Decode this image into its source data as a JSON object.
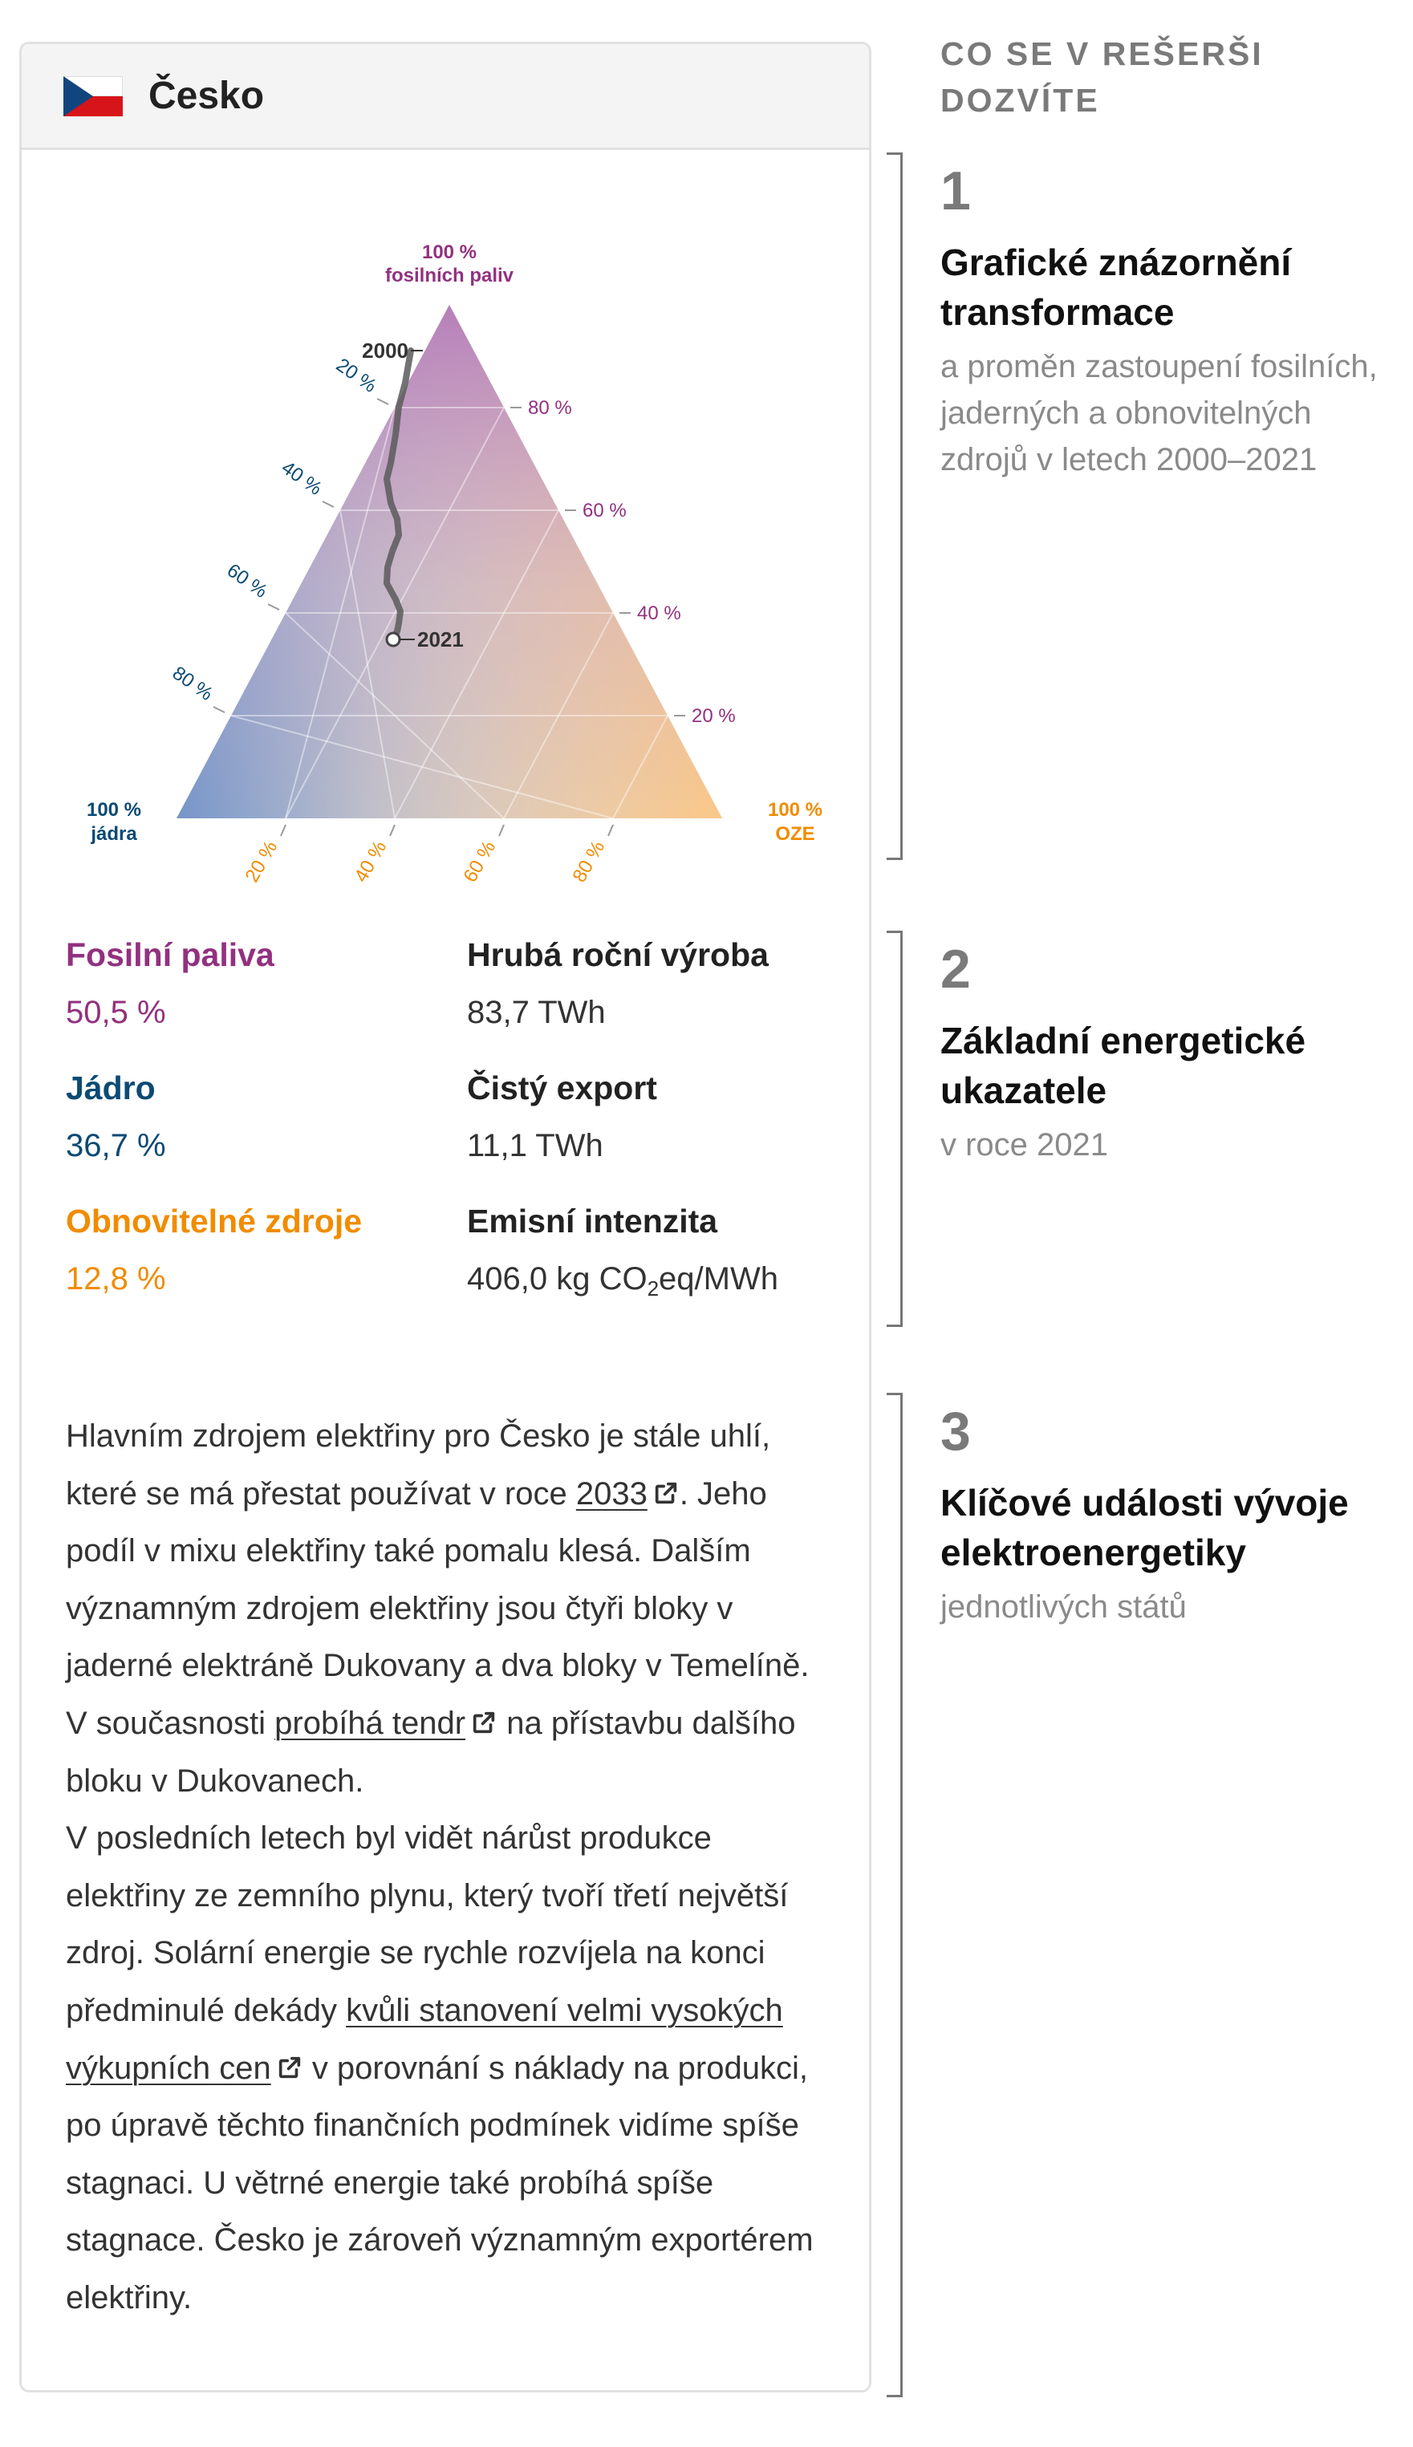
{
  "country": {
    "name": "Česko",
    "flag_colors": [
      "#ffffff",
      "#d7141a",
      "#11457e"
    ]
  },
  "chart_data": {
    "type": "ternary",
    "top_label": [
      "100 %",
      "fosilních paliv"
    ],
    "left_label": [
      "100 %",
      "jádra"
    ],
    "right_label": [
      "100 %",
      "OZE"
    ],
    "left_edge_ticks": [
      "20 %",
      "40 %",
      "60 %",
      "80 %"
    ],
    "right_edge_ticks": [
      "80 %",
      "60 %",
      "40 %",
      "20 %"
    ],
    "bottom_edge_ticks": [
      "20 %",
      "40 %",
      "60 %",
      "80 %"
    ],
    "start_year": "2000",
    "end_year": "2021",
    "end_point": {
      "fossil": 50.5,
      "nuclear": 36.7,
      "renewable": 12.8
    },
    "colors": {
      "fossil": "#92317f",
      "nuclear": "#0b4a74",
      "renewable": "#f08c00",
      "path": "#555555"
    }
  },
  "stats": {
    "fossil": {
      "label": "Fosilní paliva",
      "value": "50,5 %"
    },
    "nuclear": {
      "label": "Jádro",
      "value": "36,7 %"
    },
    "renewable": {
      "label": "Obnovitelné zdroje",
      "value": "12,8 %"
    },
    "gross": {
      "label": "Hrubá roční výroba",
      "value": "83,7 TWh"
    },
    "export": {
      "label": "Čistý export",
      "value": "11,1 TWh"
    },
    "emission": {
      "label": "Emisní intenzita",
      "value_prefix": "406,0 kg CO",
      "value_sub": "2",
      "value_suffix": "eq/MWh"
    }
  },
  "description": {
    "p1_a": "Hlavním zdrojem elektřiny pro Česko je stále uhlí, které se má přestat používat v roce ",
    "p1_link": "2033",
    "p1_b": ". Jeho podíl v mixu elektřiny také pomalu klesá. Dalším významným zdrojem elektřiny jsou čtyři bloky v jaderné elektráně Dukovany a dva bloky v Temelíně. V současnosti ",
    "p1_link2": "probíhá tendr",
    "p1_c": " na přístavbu dalšího bloku v Dukovanech.",
    "p2_a": "V posledních letech byl vidět nárůst produkce elektřiny ze zemního plynu, který tvoří třetí největší zdroj. Solární energie se rychle rozvíjela na konci předminulé dekády ",
    "p2_link": "kvůli stanovení velmi vysokých výkupních cen",
    "p2_b": " v porovnání s náklady na produkci, po úpravě těchto finančních podmínek vidíme spíše stagnaci. U větrné energie také probíhá spíše stagnace. Česko je zároveň významným exportérem elektřiny."
  },
  "sidebar": {
    "heading": "CO SE V REŠERŠI DOZVÍTE",
    "sections": [
      {
        "num": "1",
        "title": "Grafické znázornění transformace",
        "subtitle": "a proměn zastoupení fosilních, jaderných a obnovitelných zdrojů v letech 2000–2021"
      },
      {
        "num": "2",
        "title": "Základní energetické ukazatele",
        "subtitle": "v roce 2021"
      },
      {
        "num": "3",
        "title": "Klíčové události vývoje elektroenergetiky",
        "subtitle": "jednotlivých států"
      }
    ]
  }
}
